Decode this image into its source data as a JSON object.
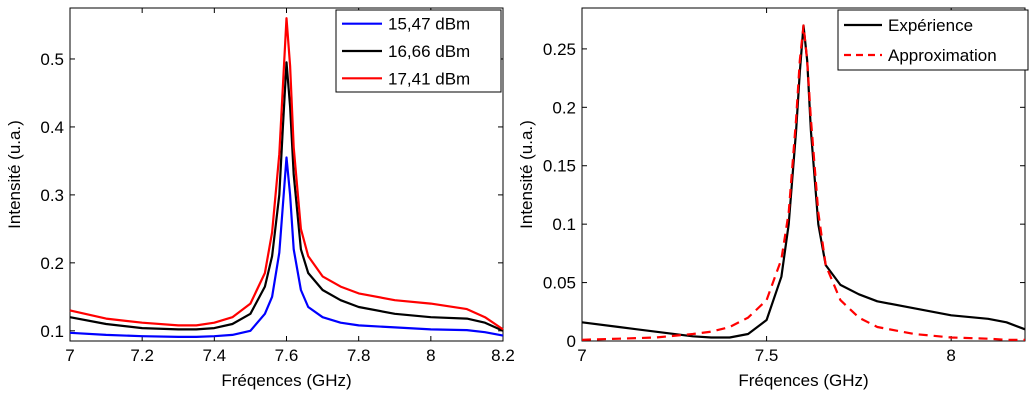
{
  "chart_data": [
    {
      "type": "line",
      "xlabel": "Fréqences (GHz)",
      "ylabel": "Intensité (u.a.)",
      "xlim": [
        7,
        8.2
      ],
      "ylim": [
        0.085,
        0.575
      ],
      "xticks": [
        7,
        7.2,
        7.4,
        7.6,
        7.8,
        8,
        8.2
      ],
      "xtick_labels": [
        "7",
        "7.2",
        "7.4",
        "7.6",
        "7.8",
        "8",
        "8.2"
      ],
      "yticks": [
        0.1,
        0.2,
        0.3,
        0.4,
        0.5
      ],
      "ytick_labels": [
        "0.1",
        "0.2",
        "0.3",
        "0.4",
        "0.5"
      ],
      "legend_position": "top-right",
      "series": [
        {
          "name": "15,47 dBm",
          "color": "#0000ff",
          "x": [
            7.0,
            7.1,
            7.2,
            7.3,
            7.35,
            7.4,
            7.45,
            7.5,
            7.54,
            7.56,
            7.58,
            7.59,
            7.6,
            7.61,
            7.62,
            7.64,
            7.66,
            7.7,
            7.75,
            7.8,
            7.9,
            8.0,
            8.1,
            8.15,
            8.2
          ],
          "y": [
            0.097,
            0.094,
            0.092,
            0.091,
            0.091,
            0.092,
            0.094,
            0.1,
            0.125,
            0.15,
            0.215,
            0.285,
            0.355,
            0.3,
            0.22,
            0.16,
            0.135,
            0.12,
            0.112,
            0.108,
            0.105,
            0.102,
            0.101,
            0.098,
            0.093
          ]
        },
        {
          "name": "16,66 dBm",
          "color": "#000000",
          "x": [
            7.0,
            7.1,
            7.2,
            7.3,
            7.35,
            7.4,
            7.45,
            7.5,
            7.54,
            7.56,
            7.58,
            7.59,
            7.6,
            7.61,
            7.62,
            7.64,
            7.66,
            7.7,
            7.75,
            7.8,
            7.9,
            8.0,
            8.1,
            8.15,
            8.2
          ],
          "y": [
            0.12,
            0.11,
            0.104,
            0.102,
            0.102,
            0.104,
            0.11,
            0.125,
            0.165,
            0.21,
            0.3,
            0.4,
            0.495,
            0.43,
            0.33,
            0.22,
            0.185,
            0.16,
            0.145,
            0.135,
            0.125,
            0.12,
            0.118,
            0.112,
            0.1
          ]
        },
        {
          "name": "17,41 dBm",
          "color": "#ff0000",
          "x": [
            7.0,
            7.1,
            7.2,
            7.3,
            7.35,
            7.4,
            7.45,
            7.5,
            7.54,
            7.56,
            7.58,
            7.59,
            7.6,
            7.61,
            7.62,
            7.64,
            7.66,
            7.7,
            7.75,
            7.8,
            7.9,
            8.0,
            8.1,
            8.15,
            8.2
          ],
          "y": [
            0.13,
            0.118,
            0.112,
            0.108,
            0.108,
            0.112,
            0.12,
            0.14,
            0.185,
            0.245,
            0.36,
            0.46,
            0.56,
            0.49,
            0.37,
            0.25,
            0.21,
            0.18,
            0.165,
            0.155,
            0.145,
            0.14,
            0.132,
            0.12,
            0.102
          ]
        }
      ]
    },
    {
      "type": "line",
      "xlabel": "Fréqences (GHz)",
      "ylabel": "Intensité (u.a.)",
      "xlim": [
        7,
        8.2
      ],
      "ylim": [
        0,
        0.285
      ],
      "xticks": [
        7,
        7.5,
        8
      ],
      "xtick_labels": [
        "7",
        "7.5",
        "8"
      ],
      "yticks": [
        0,
        0.05,
        0.1,
        0.15,
        0.2,
        0.25
      ],
      "ytick_labels": [
        "0",
        "0.05",
        "0.1",
        "0.15",
        "0.2",
        "0.25"
      ],
      "legend_position": "top-right",
      "series": [
        {
          "name": "Expérience",
          "color": "#000000",
          "dash": "solid",
          "x": [
            7.0,
            7.1,
            7.2,
            7.3,
            7.35,
            7.4,
            7.45,
            7.5,
            7.54,
            7.56,
            7.58,
            7.59,
            7.6,
            7.61,
            7.62,
            7.64,
            7.66,
            7.7,
            7.75,
            7.8,
            7.9,
            8.0,
            8.1,
            8.15,
            8.2
          ],
          "y": [
            0.016,
            0.012,
            0.008,
            0.004,
            0.003,
            0.003,
            0.006,
            0.018,
            0.055,
            0.1,
            0.18,
            0.23,
            0.27,
            0.24,
            0.18,
            0.1,
            0.065,
            0.048,
            0.04,
            0.034,
            0.028,
            0.022,
            0.019,
            0.016,
            0.01
          ]
        },
        {
          "name": "Approximation",
          "color": "#ff0000",
          "dash": "dashed",
          "x": [
            7.0,
            7.1,
            7.2,
            7.3,
            7.35,
            7.4,
            7.45,
            7.5,
            7.54,
            7.56,
            7.58,
            7.59,
            7.6,
            7.61,
            7.62,
            7.64,
            7.66,
            7.7,
            7.75,
            7.8,
            7.9,
            8.0,
            8.1,
            8.15,
            8.2
          ],
          "y": [
            0.001,
            0.002,
            0.003,
            0.006,
            0.008,
            0.012,
            0.02,
            0.035,
            0.07,
            0.11,
            0.19,
            0.24,
            0.27,
            0.24,
            0.19,
            0.11,
            0.065,
            0.035,
            0.02,
            0.012,
            0.006,
            0.003,
            0.002,
            0.001,
            0.001
          ]
        }
      ]
    }
  ]
}
